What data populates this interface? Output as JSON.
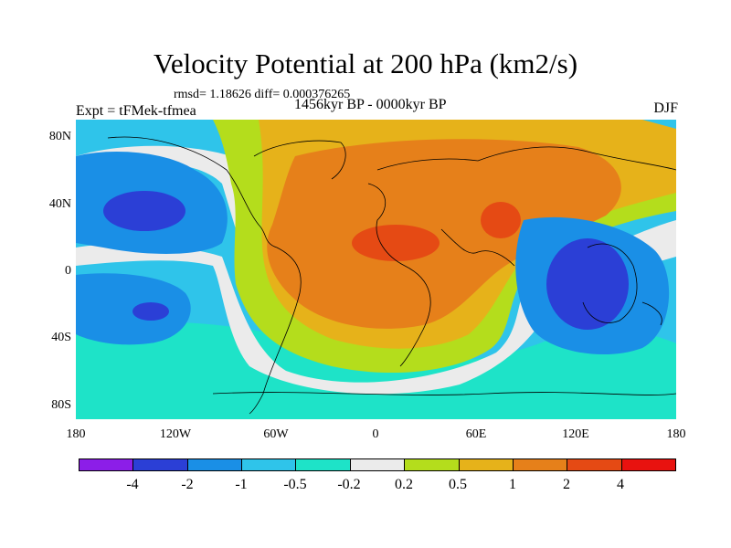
{
  "title": "Velocity Potential at 200 hPa (km2/s)",
  "stats": "rmsd= 1.18626 diff= 0.000376265",
  "period": "1456kyr BP - 0000kyr BP",
  "experiment": "Expt = tFMek-tfmea",
  "season": "DJF",
  "map": {
    "lat_labels": [
      "80N",
      "40N",
      "0",
      "40S",
      "80S"
    ],
    "lon_labels": [
      "180",
      "120W",
      "60W",
      "0",
      "60E",
      "120E",
      "180"
    ]
  },
  "colorbar": {
    "labels": [
      "-4",
      "-2",
      "-1",
      "-0.5",
      "-0.2",
      "0.2",
      "0.5",
      "1",
      "2",
      "4"
    ],
    "colors": [
      "#8c1ee8",
      "#2b3fd6",
      "#1a8fe6",
      "#2fc4ea",
      "#1ee3c8",
      "#ebebeb",
      "#b4dd1c",
      "#e6b21a",
      "#e6801a",
      "#e54a14",
      "#e8120f"
    ]
  },
  "colors": {
    "very_neg": "#2b3fd6",
    "neg": "#1a8fe6",
    "mid_neg": "#2fc4ea",
    "small_neg": "#1ee3c8",
    "neutral": "#ebebeb",
    "small_pos": "#b4dd1c",
    "mid_pos": "#e6b21a",
    "pos": "#e6801a",
    "high_pos": "#e54a14"
  }
}
